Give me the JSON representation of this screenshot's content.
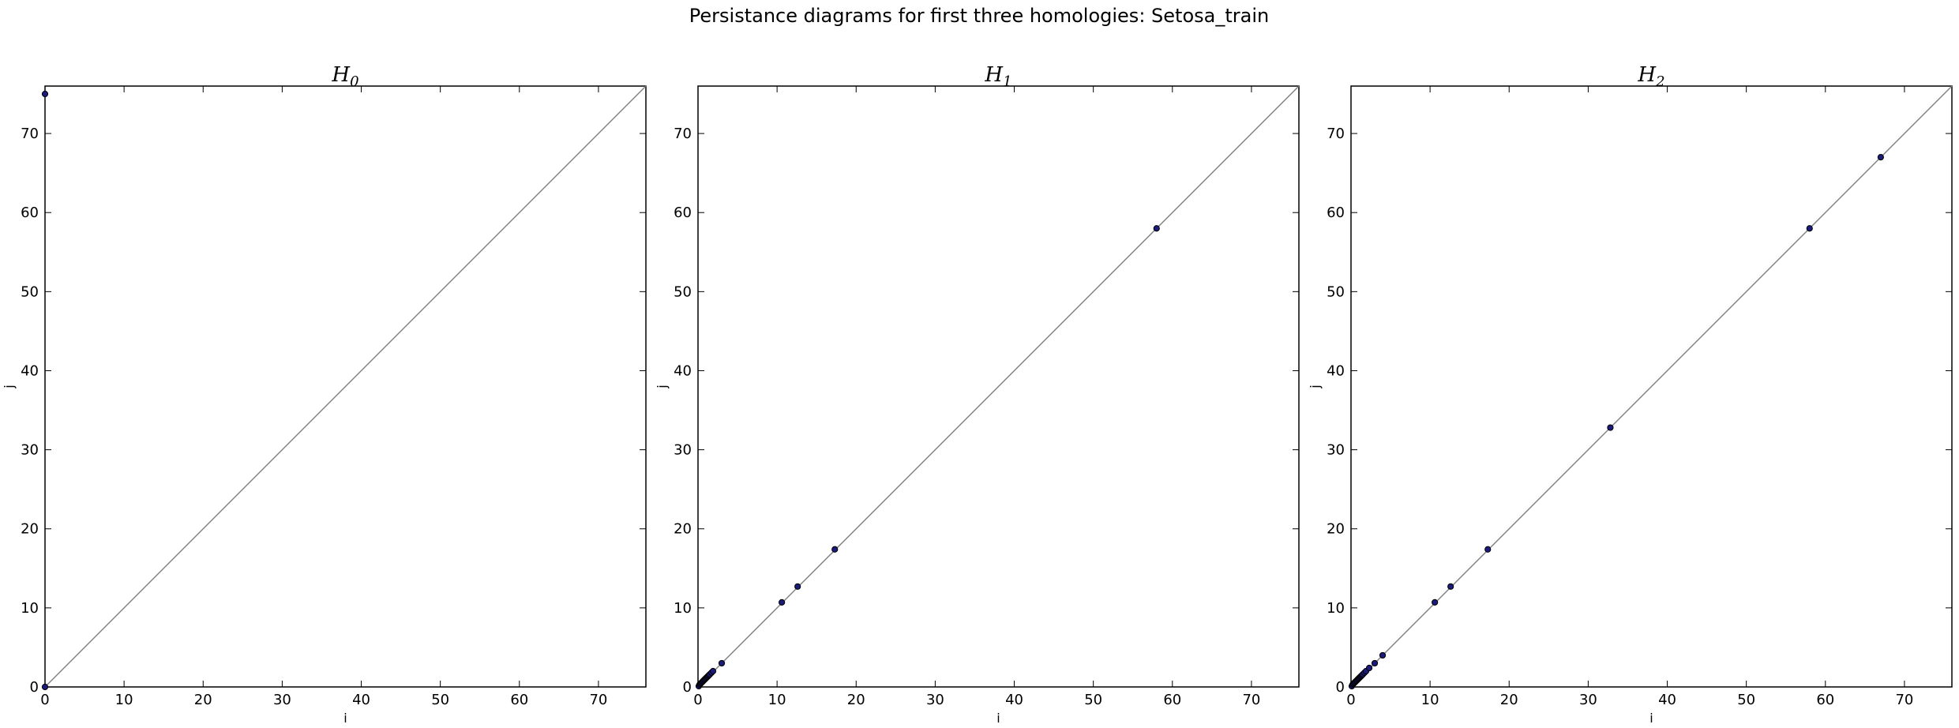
{
  "figure": {
    "suptitle": "Persistance diagrams for first three homologies: Setosa_train",
    "colors": {
      "point_fill": "#1b1b7a",
      "point_edge": "#000000",
      "diagonal": "#808080",
      "frame": "#000000",
      "background": "#ffffff"
    }
  },
  "chart_data": [
    {
      "type": "scatter",
      "title": "H",
      "title_subscript": "0",
      "xlabel": "i",
      "ylabel": "j",
      "xlim": [
        0,
        76
      ],
      "ylim": [
        0,
        76
      ],
      "xticks": [
        0,
        10,
        20,
        30,
        40,
        50,
        60,
        70
      ],
      "yticks": [
        0,
        10,
        20,
        30,
        40,
        50,
        60,
        70
      ],
      "grid": false,
      "reference_line": "y = x",
      "points": [
        {
          "x": 0,
          "y": 75
        },
        {
          "x": 0,
          "y": 0
        }
      ]
    },
    {
      "type": "scatter",
      "title": "H",
      "title_subscript": "1",
      "xlabel": "i",
      "ylabel": "j",
      "xlim": [
        0,
        76
      ],
      "ylim": [
        0,
        76
      ],
      "xticks": [
        0,
        10,
        20,
        30,
        40,
        50,
        60,
        70
      ],
      "yticks": [
        0,
        10,
        20,
        30,
        40,
        50,
        60,
        70
      ],
      "grid": false,
      "reference_line": "y = x",
      "points": [
        {
          "x": 0.1,
          "y": 0.1
        },
        {
          "x": 0.2,
          "y": 0.3
        },
        {
          "x": 0.3,
          "y": 0.4
        },
        {
          "x": 0.4,
          "y": 0.5
        },
        {
          "x": 0.5,
          "y": 0.6
        },
        {
          "x": 0.6,
          "y": 0.7
        },
        {
          "x": 0.7,
          "y": 0.8
        },
        {
          "x": 0.8,
          "y": 0.9
        },
        {
          "x": 0.9,
          "y": 1.0
        },
        {
          "x": 1.0,
          "y": 1.1
        },
        {
          "x": 1.1,
          "y": 1.2
        },
        {
          "x": 1.2,
          "y": 1.3
        },
        {
          "x": 1.3,
          "y": 1.4
        },
        {
          "x": 1.4,
          "y": 1.5
        },
        {
          "x": 1.5,
          "y": 1.6
        },
        {
          "x": 1.7,
          "y": 1.8
        },
        {
          "x": 1.9,
          "y": 2.0
        },
        {
          "x": 3,
          "y": 3
        },
        {
          "x": 10.6,
          "y": 10.7
        },
        {
          "x": 12.6,
          "y": 12.7
        },
        {
          "x": 17.3,
          "y": 17.4
        },
        {
          "x": 58,
          "y": 58
        }
      ]
    },
    {
      "type": "scatter",
      "title": "H",
      "title_subscript": "2",
      "xlabel": "i",
      "ylabel": "j",
      "xlim": [
        0,
        76
      ],
      "ylim": [
        0,
        76
      ],
      "xticks": [
        0,
        10,
        20,
        30,
        40,
        50,
        60,
        70
      ],
      "yticks": [
        0,
        10,
        20,
        30,
        40,
        50,
        60,
        70
      ],
      "grid": false,
      "reference_line": "y = x",
      "points": [
        {
          "x": 0.1,
          "y": 0.1
        },
        {
          "x": 0.2,
          "y": 0.3
        },
        {
          "x": 0.3,
          "y": 0.4
        },
        {
          "x": 0.4,
          "y": 0.5
        },
        {
          "x": 0.5,
          "y": 0.6
        },
        {
          "x": 0.6,
          "y": 0.7
        },
        {
          "x": 0.7,
          "y": 0.8
        },
        {
          "x": 0.8,
          "y": 0.9
        },
        {
          "x": 0.9,
          "y": 1.0
        },
        {
          "x": 1.0,
          "y": 1.1
        },
        {
          "x": 1.1,
          "y": 1.2
        },
        {
          "x": 1.2,
          "y": 1.3
        },
        {
          "x": 1.3,
          "y": 1.4
        },
        {
          "x": 1.4,
          "y": 1.5
        },
        {
          "x": 1.5,
          "y": 1.6
        },
        {
          "x": 1.7,
          "y": 1.8
        },
        {
          "x": 1.9,
          "y": 2.0
        },
        {
          "x": 2.3,
          "y": 2.4
        },
        {
          "x": 3,
          "y": 3
        },
        {
          "x": 4,
          "y": 4
        },
        {
          "x": 10.6,
          "y": 10.7
        },
        {
          "x": 12.6,
          "y": 12.7
        },
        {
          "x": 17.3,
          "y": 17.4
        },
        {
          "x": 32.8,
          "y": 32.8
        },
        {
          "x": 58,
          "y": 58
        },
        {
          "x": 67,
          "y": 67
        }
      ]
    }
  ]
}
